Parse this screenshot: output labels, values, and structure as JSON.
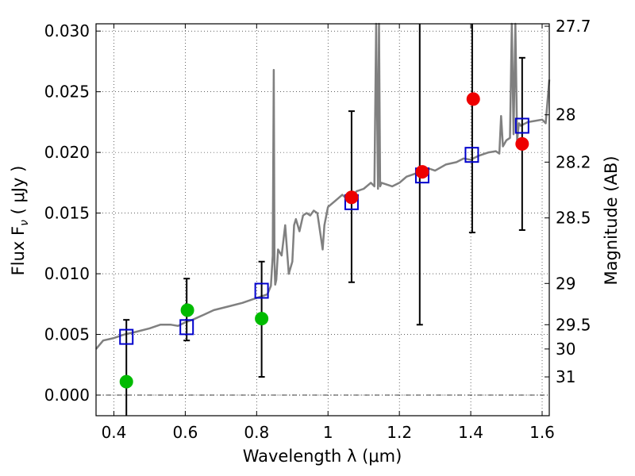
{
  "chart_data": {
    "type": "scatter",
    "xlabel": "Wavelength  λ (μm)",
    "ylabel": "Flux  F",
    "ylabel_sub": "ν",
    "ylabel_unit": "  ( μJy )",
    "right_ylabel": "Magnitude (AB)",
    "xlim": [
      0.35,
      1.62
    ],
    "ylim": [
      -0.0017,
      0.0306
    ],
    "grid": true,
    "x_ticks": [
      {
        "value": 0.4,
        "label": "0.4"
      },
      {
        "value": 0.6,
        "label": "0.6"
      },
      {
        "value": 0.8,
        "label": "0.8"
      },
      {
        "value": 1.0,
        "label": "1"
      },
      {
        "value": 1.2,
        "label": "1.2"
      },
      {
        "value": 1.4,
        "label": "1.4"
      },
      {
        "value": 1.6,
        "label": "1.6"
      }
    ],
    "y_ticks": [
      {
        "value": 0.0,
        "label": "0.000"
      },
      {
        "value": 0.005,
        "label": "0.005"
      },
      {
        "value": 0.01,
        "label": "0.010"
      },
      {
        "value": 0.015,
        "label": "0.015"
      },
      {
        "value": 0.02,
        "label": "0.020"
      },
      {
        "value": 0.025,
        "label": "0.025"
      },
      {
        "value": 0.03,
        "label": "0.030"
      }
    ],
    "right_ticks": [
      {
        "label": "27.7",
        "flux": 0.0304
      },
      {
        "label": "28",
        "flux": 0.0231
      },
      {
        "label": "28.2",
        "flux": 0.0192
      },
      {
        "label": "28.5",
        "flux": 0.0146
      },
      {
        "label": "29",
        "flux": 0.0092
      },
      {
        "label": "29.5",
        "flux": 0.0058
      },
      {
        "label": "30",
        "flux": 0.0038
      },
      {
        "label": "31",
        "flux": 0.0015
      }
    ],
    "zero_line": 0.0,
    "model_spectrum": {
      "color": "#808080",
      "x": [
        0.35,
        0.37,
        0.4,
        0.43,
        0.46,
        0.5,
        0.53,
        0.56,
        0.58,
        0.6,
        0.62,
        0.65,
        0.68,
        0.72,
        0.76,
        0.8,
        0.83,
        0.84,
        0.845,
        0.848,
        0.85,
        0.852,
        0.855,
        0.86,
        0.87,
        0.88,
        0.89,
        0.9,
        0.905,
        0.91,
        0.92,
        0.93,
        0.94,
        0.95,
        0.96,
        0.97,
        0.98,
        0.985,
        0.99,
        1.0,
        1.02,
        1.04,
        1.06,
        1.08,
        1.1,
        1.12,
        1.13,
        1.135,
        1.14,
        1.143,
        1.146,
        1.15,
        1.16,
        1.18,
        1.2,
        1.22,
        1.25,
        1.28,
        1.3,
        1.33,
        1.36,
        1.38,
        1.4,
        1.42,
        1.45,
        1.47,
        1.48,
        1.485,
        1.49,
        1.5,
        1.51,
        1.515,
        1.52,
        1.525,
        1.53,
        1.535,
        1.54,
        1.56,
        1.58,
        1.6,
        1.61,
        1.62
      ],
      "y": [
        0.0038,
        0.0045,
        0.0047,
        0.005,
        0.0052,
        0.0055,
        0.0058,
        0.0058,
        0.0057,
        0.006,
        0.0062,
        0.0066,
        0.007,
        0.0073,
        0.0076,
        0.008,
        0.0083,
        0.009,
        0.0115,
        0.0268,
        0.011,
        0.0091,
        0.0095,
        0.012,
        0.0115,
        0.014,
        0.01,
        0.011,
        0.014,
        0.0145,
        0.0135,
        0.0148,
        0.015,
        0.0148,
        0.0152,
        0.015,
        0.013,
        0.012,
        0.014,
        0.0155,
        0.016,
        0.0165,
        0.016,
        0.0168,
        0.017,
        0.0175,
        0.0172,
        0.0306,
        0.017,
        0.0306,
        0.0172,
        0.0175,
        0.0174,
        0.0172,
        0.0175,
        0.018,
        0.0183,
        0.0187,
        0.0185,
        0.019,
        0.0192,
        0.0195,
        0.0194,
        0.0197,
        0.02,
        0.0201,
        0.0199,
        0.023,
        0.0205,
        0.021,
        0.0212,
        0.0306,
        0.0215,
        0.0306,
        0.021,
        0.0224,
        0.0222,
        0.0225,
        0.0226,
        0.0227,
        0.0224,
        0.026
      ]
    },
    "model_photometry": {
      "color": "#0000cc",
      "x": [
        0.435,
        0.604,
        0.814,
        1.066,
        1.264,
        1.403,
        1.544
      ],
      "y": [
        0.0048,
        0.0056,
        0.0086,
        0.0159,
        0.0181,
        0.0198,
        0.0222
      ]
    },
    "observed_green": {
      "color": "#00bb00",
      "x": [
        0.435,
        0.606,
        0.814
      ],
      "y": [
        0.0011,
        0.007,
        0.0063
      ],
      "errors": [
        {
          "x": 0.435,
          "low": -0.0017,
          "high": 0.0062
        },
        {
          "x": 0.604,
          "low": 0.0045,
          "high": 0.0096
        },
        {
          "x": 0.814,
          "low": 0.0015,
          "high": 0.011
        }
      ]
    },
    "observed_red": {
      "color": "#ee0000",
      "x": [
        1.066,
        1.264,
        1.407,
        1.544
      ],
      "y": [
        0.0163,
        0.0184,
        0.0244,
        0.0207
      ],
      "errors": [
        {
          "x": 1.066,
          "low": 0.0093,
          "high": 0.0234
        },
        {
          "x": 1.257,
          "low": 0.0058,
          "high": 0.0306
        },
        {
          "x": 1.404,
          "low": 0.0134,
          "high": 0.0306
        },
        {
          "x": 1.544,
          "low": 0.0136,
          "high": 0.0278
        }
      ]
    }
  }
}
